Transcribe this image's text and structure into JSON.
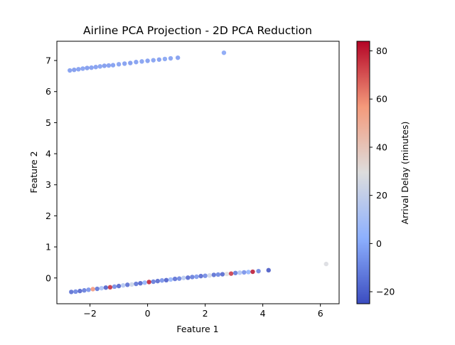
{
  "chart_data": {
    "type": "scatter",
    "title": "Airline PCA Projection - 2D PCA Reduction",
    "xlabel": "Feature 1",
    "ylabel": "Feature 2",
    "xlim": [
      -3.15,
      6.65
    ],
    "ylim": [
      -0.83,
      7.62
    ],
    "xticks": [
      -2,
      0,
      2,
      4,
      6
    ],
    "yticks": [
      0,
      1,
      2,
      3,
      4,
      5,
      6,
      7
    ],
    "grid": false,
    "colormap": "coolwarm",
    "colorbar": {
      "label": "Arrival Delay (minutes)",
      "range": [
        -25,
        84
      ],
      "ticks": [
        -20,
        0,
        20,
        40,
        60,
        80
      ]
    },
    "points": [
      {
        "x": -2.7,
        "y": 6.68,
        "c": -5
      },
      {
        "x": -2.55,
        "y": 6.7,
        "c": -6
      },
      {
        "x": -2.4,
        "y": 6.72,
        "c": -5
      },
      {
        "x": -2.25,
        "y": 6.74,
        "c": -4
      },
      {
        "x": -2.1,
        "y": 6.76,
        "c": -6
      },
      {
        "x": -1.95,
        "y": 6.77,
        "c": -5
      },
      {
        "x": -1.8,
        "y": 6.79,
        "c": -5
      },
      {
        "x": -1.65,
        "y": 6.81,
        "c": -4
      },
      {
        "x": -1.5,
        "y": 6.83,
        "c": -6
      },
      {
        "x": -1.35,
        "y": 6.84,
        "c": -5
      },
      {
        "x": -1.2,
        "y": 6.85,
        "c": -5
      },
      {
        "x": -1.0,
        "y": 6.88,
        "c": -4
      },
      {
        "x": -0.8,
        "y": 6.9,
        "c": -5
      },
      {
        "x": -0.6,
        "y": 6.92,
        "c": -6
      },
      {
        "x": -0.4,
        "y": 6.95,
        "c": -5
      },
      {
        "x": -0.2,
        "y": 6.97,
        "c": -4
      },
      {
        "x": 0.0,
        "y": 6.99,
        "c": -5
      },
      {
        "x": 0.2,
        "y": 7.01,
        "c": -4
      },
      {
        "x": 0.4,
        "y": 7.03,
        "c": -5
      },
      {
        "x": 0.6,
        "y": 7.05,
        "c": -3
      },
      {
        "x": 0.8,
        "y": 7.07,
        "c": -4
      },
      {
        "x": 1.05,
        "y": 7.09,
        "c": -5
      },
      {
        "x": 2.65,
        "y": 7.25,
        "c": -2
      },
      {
        "x": -2.65,
        "y": -0.45,
        "c": -18
      },
      {
        "x": -2.5,
        "y": -0.44,
        "c": -12
      },
      {
        "x": -2.35,
        "y": -0.42,
        "c": -20
      },
      {
        "x": -2.2,
        "y": -0.4,
        "c": -14
      },
      {
        "x": -2.05,
        "y": -0.38,
        "c": -8
      },
      {
        "x": -1.9,
        "y": -0.36,
        "c": 58
      },
      {
        "x": -1.75,
        "y": -0.35,
        "c": -16
      },
      {
        "x": -1.6,
        "y": -0.33,
        "c": 10
      },
      {
        "x": -1.45,
        "y": -0.31,
        "c": -22
      },
      {
        "x": -1.3,
        "y": -0.3,
        "c": 78
      },
      {
        "x": -1.15,
        "y": -0.28,
        "c": -10
      },
      {
        "x": -1.0,
        "y": -0.26,
        "c": -20
      },
      {
        "x": -0.85,
        "y": -0.24,
        "c": 14
      },
      {
        "x": -0.7,
        "y": -0.22,
        "c": -18
      },
      {
        "x": -0.55,
        "y": -0.21,
        "c": 22
      },
      {
        "x": -0.4,
        "y": -0.19,
        "c": -16
      },
      {
        "x": -0.25,
        "y": -0.17,
        "c": -21
      },
      {
        "x": -0.1,
        "y": -0.15,
        "c": 2
      },
      {
        "x": 0.05,
        "y": -0.13,
        "c": 80
      },
      {
        "x": 0.2,
        "y": -0.12,
        "c": -15
      },
      {
        "x": 0.35,
        "y": -0.1,
        "c": -19
      },
      {
        "x": 0.5,
        "y": -0.08,
        "c": -8
      },
      {
        "x": 0.65,
        "y": -0.07,
        "c": -22
      },
      {
        "x": 0.8,
        "y": -0.05,
        "c": 4
      },
      {
        "x": 0.95,
        "y": -0.03,
        "c": -17
      },
      {
        "x": 1.1,
        "y": -0.02,
        "c": -12
      },
      {
        "x": 1.25,
        "y": 0.0,
        "c": 16
      },
      {
        "x": 1.4,
        "y": 0.01,
        "c": -20
      },
      {
        "x": 1.55,
        "y": 0.03,
        "c": -14
      },
      {
        "x": 1.7,
        "y": 0.04,
        "c": -6
      },
      {
        "x": 1.85,
        "y": 0.06,
        "c": -19
      },
      {
        "x": 2.0,
        "y": 0.07,
        "c": -10
      },
      {
        "x": 2.15,
        "y": 0.08,
        "c": 24
      },
      {
        "x": 2.3,
        "y": 0.1,
        "c": -18
      },
      {
        "x": 2.45,
        "y": 0.11,
        "c": -12
      },
      {
        "x": 2.6,
        "y": 0.12,
        "c": -20
      },
      {
        "x": 2.75,
        "y": 0.13,
        "c": 30
      },
      {
        "x": 2.9,
        "y": 0.14,
        "c": 76
      },
      {
        "x": 3.05,
        "y": 0.16,
        "c": -15
      },
      {
        "x": 3.2,
        "y": 0.17,
        "c": 12
      },
      {
        "x": 3.35,
        "y": 0.18,
        "c": -8
      },
      {
        "x": 3.5,
        "y": 0.19,
        "c": 2
      },
      {
        "x": 3.65,
        "y": 0.2,
        "c": 82
      },
      {
        "x": 3.85,
        "y": 0.22,
        "c": -12
      },
      {
        "x": 4.2,
        "y": 0.25,
        "c": -24
      },
      {
        "x": 6.2,
        "y": 0.45,
        "c": 28
      }
    ]
  }
}
